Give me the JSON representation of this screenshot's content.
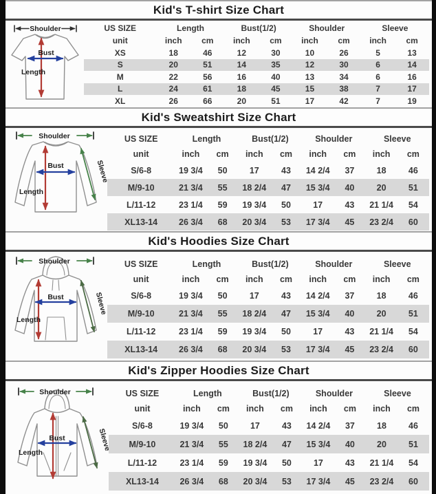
{
  "page": {
    "background": "#fcfcfc",
    "frame_border": "#0d0d0d"
  },
  "colors": {
    "row_shade": "#d8d8d8",
    "title_rule_top": "#a2a2a2",
    "title_rule_bottom": "#4a4a4a",
    "arrow_red": "#b23b34",
    "arrow_blue": "#24409e",
    "arrow_green": "#47824a",
    "arrow_dark_green": "#4c6b45",
    "arrow_black": "#2f2f2f",
    "garment_outline": "#8f8f8f"
  },
  "sections": [
    {
      "title": "Kid's T-shirt Size Chart",
      "diagram": {
        "type": "tshirt",
        "labels": {
          "shoulder": "Shoulder",
          "bust": "Bust",
          "length": "Length"
        }
      },
      "table": {
        "col_groups": [
          "US SIZE",
          "Length",
          "Bust(1/2)",
          "Shoulder",
          "Sleeve"
        ],
        "unit_row": [
          "unit",
          "inch",
          "cm",
          "inch",
          "cm",
          "inch",
          "cm",
          "inch",
          "cm"
        ],
        "rows": [
          {
            "size": "XS",
            "shaded": false,
            "values": [
              "18",
              "46",
              "12",
              "30",
              "10",
              "26",
              "5",
              "13"
            ]
          },
          {
            "size": "S",
            "shaded": true,
            "values": [
              "20",
              "51",
              "14",
              "35",
              "12",
              "30",
              "6",
              "14"
            ]
          },
          {
            "size": "M",
            "shaded": false,
            "values": [
              "22",
              "56",
              "16",
              "40",
              "13",
              "34",
              "6",
              "16"
            ]
          },
          {
            "size": "L",
            "shaded": true,
            "values": [
              "24",
              "61",
              "18",
              "45",
              "15",
              "38",
              "7",
              "17"
            ]
          },
          {
            "size": "XL",
            "shaded": false,
            "values": [
              "26",
              "66",
              "20",
              "51",
              "17",
              "42",
              "7",
              "19"
            ]
          }
        ]
      }
    },
    {
      "title": "Kid's Sweatshirt Size Chart",
      "diagram": {
        "type": "sweatshirt",
        "labels": {
          "shoulder": "Shoulder",
          "bust": "Bust",
          "length": "Length",
          "sleeve": "Sleeve"
        }
      },
      "table": {
        "col_groups": [
          "US SIZE",
          "Length",
          "Bust(1/2)",
          "Shoulder",
          "Sleeve"
        ],
        "unit_row": [
          "unit",
          "inch",
          "cm",
          "inch",
          "cm",
          "inch",
          "cm",
          "inch",
          "cm"
        ],
        "rows": [
          {
            "size": "S/6-8",
            "shaded": false,
            "values": [
              "19 3/4",
              "50",
              "17",
              "43",
              "14 2/4",
              "37",
              "18",
              "46"
            ]
          },
          {
            "size": "M/9-10",
            "shaded": true,
            "values": [
              "21 3/4",
              "55",
              "18 2/4",
              "47",
              "15 3/4",
              "40",
              "20",
              "51"
            ]
          },
          {
            "size": "L/11-12",
            "shaded": false,
            "values": [
              "23 1/4",
              "59",
              "19 3/4",
              "50",
              "17",
              "43",
              "21 1/4",
              "54"
            ]
          },
          {
            "size": "XL13-14",
            "shaded": true,
            "values": [
              "26 3/4",
              "68",
              "20 3/4",
              "53",
              "17 3/4",
              "45",
              "23 2/4",
              "60"
            ]
          }
        ]
      }
    },
    {
      "title": "Kid's Hoodies Size Chart",
      "diagram": {
        "type": "hoodie",
        "labels": {
          "shoulder": "Shoulder",
          "bust": "Bust",
          "length": "Length",
          "sleeve": "Sleeve"
        }
      },
      "table": {
        "col_groups": [
          "US SIZE",
          "Length",
          "Bust(1/2)",
          "Shoulder",
          "Sleeve"
        ],
        "unit_row": [
          "unit",
          "inch",
          "cm",
          "inch",
          "cm",
          "inch",
          "cm",
          "inch",
          "cm"
        ],
        "rows": [
          {
            "size": "S/6-8",
            "shaded": false,
            "values": [
              "19 3/4",
              "50",
              "17",
              "43",
              "14 2/4",
              "37",
              "18",
              "46"
            ]
          },
          {
            "size": "M/9-10",
            "shaded": true,
            "values": [
              "21 3/4",
              "55",
              "18 2/4",
              "47",
              "15 3/4",
              "40",
              "20",
              "51"
            ]
          },
          {
            "size": "L/11-12",
            "shaded": false,
            "values": [
              "23 1/4",
              "59",
              "19 3/4",
              "50",
              "17",
              "43",
              "21 1/4",
              "54"
            ]
          },
          {
            "size": "XL13-14",
            "shaded": true,
            "values": [
              "26 3/4",
              "68",
              "20 3/4",
              "53",
              "17 3/4",
              "45",
              "23 2/4",
              "60"
            ]
          }
        ]
      }
    },
    {
      "title": "Kid's Zipper Hoodies Size Chart",
      "diagram": {
        "type": "zipper-hoodie",
        "labels": {
          "shoulder": "Shoulder",
          "bust": "Bust",
          "length": "Length",
          "sleeve": "Sleeve"
        }
      },
      "table": {
        "col_groups": [
          "US SIZE",
          "Length",
          "Bust(1/2)",
          "Shoulder",
          "Sleeve"
        ],
        "unit_row": [
          "unit",
          "inch",
          "cm",
          "inch",
          "cm",
          "inch",
          "cm",
          "inch",
          "cm"
        ],
        "rows": [
          {
            "size": "S/6-8",
            "shaded": false,
            "values": [
              "19 3/4",
              "50",
              "17",
              "43",
              "14 2/4",
              "37",
              "18",
              "46"
            ]
          },
          {
            "size": "M/9-10",
            "shaded": true,
            "values": [
              "21 3/4",
              "55",
              "18 2/4",
              "47",
              "15 3/4",
              "40",
              "20",
              "51"
            ]
          },
          {
            "size": "L/11-12",
            "shaded": false,
            "values": [
              "23 1/4",
              "59",
              "19 3/4",
              "50",
              "17",
              "43",
              "21 1/4",
              "54"
            ]
          },
          {
            "size": "XL13-14",
            "shaded": true,
            "values": [
              "26 3/4",
              "68",
              "20 3/4",
              "53",
              "17 3/4",
              "45",
              "23 2/4",
              "60"
            ]
          }
        ]
      }
    }
  ]
}
